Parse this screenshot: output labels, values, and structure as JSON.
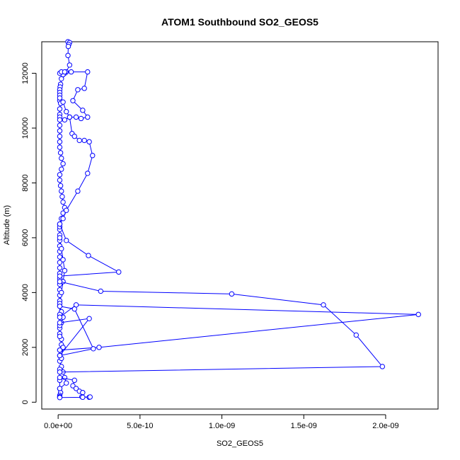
{
  "chart_data": {
    "type": "line",
    "title": "ATOM1 Southbound SO2_GEOS5",
    "xlabel": "SO2_GEOS5",
    "ylabel": "Altitude (m)",
    "xlim": [
      -1e-10,
      2.32e-09
    ],
    "ylim": [
      -250,
      13150
    ],
    "x_ticks": [
      0,
      5e-10,
      1e-09,
      1.5e-09,
      2e-09
    ],
    "x_tick_labels": [
      "0.0e+00",
      "5.0e-10",
      "1.0e-09",
      "1.5e-09",
      "2.0e-09"
    ],
    "y_ticks": [
      0,
      2000,
      4000,
      6000,
      8000,
      10000,
      12000
    ],
    "y_tick_labels": [
      "0",
      "2000",
      "4000",
      "6000",
      "8000",
      "10000",
      "12000"
    ],
    "grid": false,
    "legend": "none",
    "color": "#0000ff",
    "series": [
      {
        "x": [
          6e-11,
          7e-11,
          6.5e-11,
          6.2e-11,
          6e-11,
          7e-11,
          5e-11,
          4e-11,
          3e-11,
          2e-11,
          1.5e-11,
          1.2e-11,
          1e-11,
          1e-11,
          1e-11,
          1e-11,
          1.5e-11,
          1e-11,
          1e-11,
          1e-11,
          1e-11,
          1e-11,
          1e-11,
          1e-11,
          1e-11,
          1e-11,
          1.5e-11,
          2e-11,
          3e-11,
          2e-11,
          1e-11,
          1e-11,
          1.5e-11,
          2e-11,
          2.5e-11,
          3e-11,
          4e-11,
          3e-11,
          2e-11,
          1e-11,
          1e-11,
          1e-11,
          1e-11,
          1e-11,
          1e-11,
          1e-11,
          1e-11,
          1e-11,
          1e-11,
          1e-11,
          1e-11,
          1e-11,
          1e-11,
          1e-11,
          1e-11,
          2e-11,
          3e-11,
          2e-11,
          1e-11,
          1e-11,
          2e-11,
          2e-11,
          1e-11,
          1e-11,
          1e-11,
          2e-11,
          3e-11,
          4e-11,
          5e-11,
          1e-11,
          1.5e-11,
          1e-11,
          1e-11,
          1e-11,
          1e-11,
          1e-11,
          1e-11,
          2e-11,
          3e-11,
          1e-11,
          1e-11,
          1e-11,
          1e-11,
          2e-11,
          3e-11,
          4e-11,
          3e-11,
          2e-11,
          1e-11,
          1e-11
        ],
        "y": [
          13150,
          13120,
          13050,
          12980,
          12650,
          12300,
          12050,
          12000,
          11950,
          11800,
          11600,
          11500,
          11400,
          11300,
          11200,
          11000,
          10900,
          10700,
          10500,
          10400,
          10300,
          10100,
          9900,
          9700,
          9500,
          9300,
          9100,
          8900,
          8700,
          8500,
          8300,
          8100,
          7900,
          7700,
          7500,
          7300,
          7100,
          6900,
          6700,
          6500,
          6300,
          6100,
          5900,
          5700,
          5500,
          5300,
          5100,
          4900,
          4700,
          4500,
          4300,
          4100,
          3900,
          3700,
          3500,
          3300,
          3100,
          2900,
          2700,
          2500,
          2300,
          2100,
          1900,
          1700,
          1500,
          1300,
          1100,
          900,
          700,
          500,
          350,
          250,
          200,
          180,
          500,
          800,
          1200,
          1600,
          2000,
          2400,
          2800,
          3200,
          3600,
          4000,
          4400,
          4800,
          5200,
          5600,
          6000,
          6400
        ]
      },
      {
        "x": [
          1e-11,
          2e-11,
          4e-11,
          8e-11,
          1.8e-10,
          1.6e-10,
          1.2e-10,
          9e-11,
          1.5e-10,
          1.8e-10,
          1.4e-10,
          1.1e-10,
          7e-11,
          4e-11
        ],
        "y": [
          12000,
          12050,
          12050,
          12050,
          12050,
          11450,
          11400,
          11000,
          10650,
          10400,
          10350,
          10400,
          10400,
          10300
        ]
      },
      {
        "x": [
          1e-11,
          3e-11,
          5e-11,
          7e-11,
          8.5e-11,
          1e-10,
          1.3e-10,
          1.6e-10,
          1.9e-10,
          2.1e-10,
          1.8e-10,
          1.2e-10,
          5e-11,
          3e-11,
          1e-11
        ],
        "y": [
          11100,
          10950,
          10600,
          10400,
          9800,
          9700,
          9550,
          9550,
          9500,
          9000,
          8350,
          7700,
          7000,
          6700,
          6500
        ]
      },
      {
        "x": [
          1e-11,
          5e-11,
          1.85e-10,
          3.7e-10,
          1e-11
        ],
        "y": [
          6500,
          5900,
          5350,
          4750,
          4600
        ]
      },
      {
        "x": [
          1e-11,
          2.6e-10,
          1.06e-09,
          1.62e-09,
          1.82e-09,
          1.98e-09,
          1e-11
        ],
        "y": [
          4400,
          4050,
          3950,
          3550,
          2450,
          1300,
          1100
        ]
      },
      {
        "x": [
          1e-11,
          1.1e-10,
          2.2e-09,
          2.5e-10,
          1e-11
        ],
        "y": [
          3100,
          3550,
          3200,
          2000,
          1900
        ]
      },
      {
        "x": [
          1e-11,
          1e-10,
          2.15e-10,
          1e-11,
          1.9e-10,
          1e-11
        ],
        "y": [
          3500,
          3400,
          1950,
          1700,
          3050,
          2900
        ]
      },
      {
        "x": [
          1e-11,
          1e-10,
          9e-11,
          1.1e-10,
          1.3e-10,
          1.5e-10,
          1.45e-10,
          1.9e-10,
          1.95e-10,
          1.5e-10,
          1e-11
        ],
        "y": [
          900,
          800,
          600,
          500,
          400,
          350,
          200,
          180,
          190,
          180,
          170
        ]
      }
    ]
  }
}
